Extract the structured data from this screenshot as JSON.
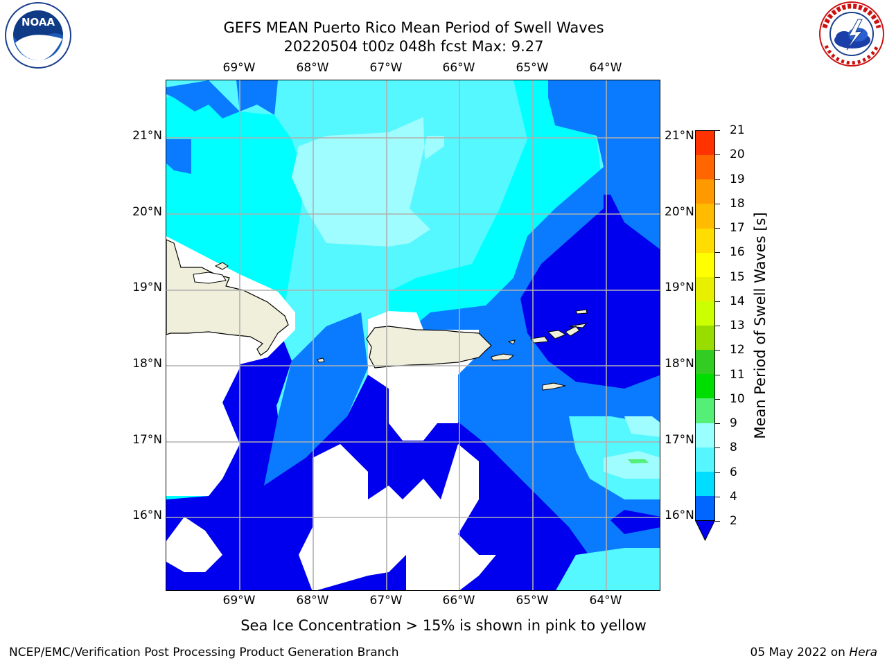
{
  "title": {
    "line1": "GEFS MEAN Puerto Rico Mean Period of Swell Waves",
    "line2": "20220504 t00z 048h fcst   Max: 9.27"
  },
  "longitude_labels": [
    "69°W",
    "68°W",
    "67°W",
    "66°W",
    "65°W",
    "64°W"
  ],
  "latitude_labels": [
    "21°N",
    "20°N",
    "19°N",
    "18°N",
    "17°N",
    "16°N"
  ],
  "colorbar": {
    "label": "Mean Period of Swell Waves [s]",
    "ticks": [
      "2",
      "4",
      "6",
      "8",
      "9",
      "10",
      "11",
      "12",
      "13",
      "14",
      "15",
      "16",
      "17",
      "18",
      "19",
      "20",
      "21"
    ],
    "colors": [
      "#0066ff",
      "#00ddff",
      "#55f6ff",
      "#99ffff",
      "#55ee77",
      "#00dd00",
      "#33cc22",
      "#99dd00",
      "#ccff00",
      "#e6f000",
      "#ffff00",
      "#ffdd00",
      "#ffbb00",
      "#ff9900",
      "#ff6600",
      "#ff3300"
    ],
    "under_color": "#0000ee"
  },
  "background_fill_colors": {
    "deep": "#0000ee",
    "blue": "#0a7bff",
    "cyan": "#00ffff",
    "light": "#55f8ff",
    "pale": "#9ffcff",
    "land": "#efefdb"
  },
  "footer": {
    "note": "Sea Ice Concentration > 15% is shown in pink to yellow",
    "left": "NCEP/EMC/Verification Post Processing Product Generation Branch",
    "right_date": "05 May 2022 on",
    "right_host": "Hera"
  },
  "logos": {
    "noaa": "NOAA",
    "nws": "NATIONAL WEATHER SERVICE"
  }
}
